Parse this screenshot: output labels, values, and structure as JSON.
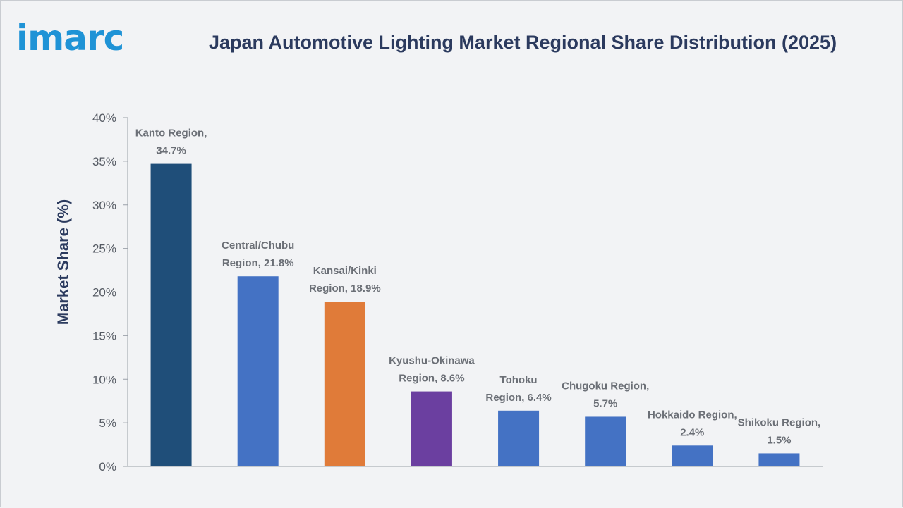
{
  "brand": {
    "logo_text": "imarc"
  },
  "chart_data": {
    "type": "bar",
    "title": "Japan Automotive Lighting Market Regional Share Distribution (2025)",
    "xlabel": "",
    "ylabel": "Market Share (%)",
    "ylim": [
      0,
      40
    ],
    "yticks": [
      0,
      5,
      10,
      15,
      20,
      25,
      30,
      35,
      40
    ],
    "ytick_labels": [
      "0%",
      "5%",
      "10%",
      "15%",
      "20%",
      "25%",
      "30%",
      "35%",
      "40%"
    ],
    "grid": false,
    "legend": "none",
    "categories": [
      "Kanto Region",
      "Central/Chubu Region",
      "Kansai/Kinki Region",
      "Kyushu-Okinawa Region",
      "Tohoku Region",
      "Chugoku Region",
      "Hokkaido Region",
      "Shikoku Region"
    ],
    "values": [
      34.7,
      21.8,
      18.9,
      8.6,
      6.4,
      5.7,
      2.4,
      1.5
    ],
    "data_labels": [
      [
        "Kanto Region,",
        "34.7%"
      ],
      [
        "Central/Chubu",
        "Region, 21.8%"
      ],
      [
        "Kansai/Kinki",
        "Region, 18.9%"
      ],
      [
        "Kyushu-Okinawa",
        "Region, 8.6%"
      ],
      [
        "Tohoku",
        "Region, 6.4%"
      ],
      [
        "Chugoku Region,",
        "5.7%"
      ],
      [
        "Hokkaido Region,",
        "2.4%"
      ],
      [
        "Shikoku Region,",
        "1.5%"
      ]
    ],
    "colors": [
      "#1f4e79",
      "#4472c4",
      "#e07b39",
      "#6b3fa0",
      "#4472c4",
      "#4472c4",
      "#4472c4",
      "#4472c4"
    ]
  }
}
